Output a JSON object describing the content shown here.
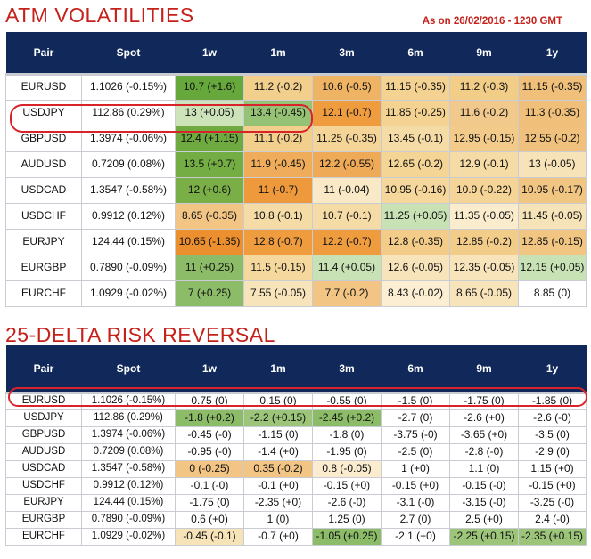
{
  "atm": {
    "title": "ATM VOLATILITIES",
    "as_of": "As on 26/02/2016 - 1230 GMT",
    "headers": [
      "Pair",
      "Spot",
      "1w",
      "1m",
      "3m",
      "6m",
      "9m",
      "1y"
    ],
    "rows": [
      {
        "pair": "EURUSD",
        "spot": "1.1026 (-0.15%)",
        "cells": [
          "10.7 (+1.6)",
          "11.2 (-0.2)",
          "10.6 (-0.5)",
          "11.15 (-0.35)",
          "11.2 (-0.3)",
          "11.15 (-0.35)"
        ],
        "colors": [
          "#67a83c",
          "#f2cf8d",
          "#efb364",
          "#f3d292",
          "#f2cd88",
          "#f0c07a"
        ]
      },
      {
        "pair": "USDJPY",
        "spot": "112.86 (0.29%)",
        "cells": [
          "13 (+0.05)",
          "13.4 (-0.45)",
          "12.1 (-0.7)",
          "11.85 (-0.25)",
          "11.6 (-0.2)",
          "11.3 (-0.35)"
        ],
        "colors": [
          "#cde4bb",
          "#96c276",
          "#ef9c3f",
          "#f3d292",
          "#f2c98c",
          "#f0c07a"
        ]
      },
      {
        "pair": "GBPUSD",
        "spot": "1.3974 (-0.06%)",
        "cells": [
          "12.4 (+1.15)",
          "11.1 (-0.2)",
          "11.25 (-0.35)",
          "13.45 (-0.1)",
          "12.95 (-0.15)",
          "12.55 (-0.2)"
        ],
        "colors": [
          "#6eaa3f",
          "#f2cf8d",
          "#f4d597",
          "#f5dba5",
          "#f2cb8b",
          "#f0c17d"
        ]
      },
      {
        "pair": "AUDUSD",
        "spot": "0.7209 (0.08%)",
        "cells": [
          "13.5 (+0.7)",
          "11.9 (-0.45)",
          "12.2 (-0.55)",
          "12.65 (-0.2)",
          "12.9 (-0.1)",
          "13 (-0.05)"
        ],
        "colors": [
          "#74ad44",
          "#efad5b",
          "#efaa58",
          "#f4d596",
          "#f5dba6",
          "#f7e3b8"
        ]
      },
      {
        "pair": "USDCAD",
        "spot": "1.3547 (-0.58%)",
        "cells": [
          "12 (+0.6)",
          "11 (-0.7)",
          "11 (-0.04)",
          "10.95 (-0.16)",
          "10.9 (-0.22)",
          "10.95 (-0.17)"
        ],
        "colors": [
          "#7aaf47",
          "#ee9a3c",
          "#fae9c6",
          "#f5d79b",
          "#f4d597",
          "#f1c683"
        ]
      },
      {
        "pair": "USDCHF",
        "spot": "0.9912 (0.12%)",
        "cells": [
          "8.65 (-0.35)",
          "10.8 (-0.1)",
          "10.7 (-0.1)",
          "11.25 (+0.05)",
          "11.35 (-0.05)",
          "11.45 (-0.05)"
        ],
        "colors": [
          "#f2c585",
          "#f5dba6",
          "#f5dba6",
          "#c8e2b6",
          "#fbeccd",
          "#f7e3b8"
        ]
      },
      {
        "pair": "EURJPY",
        "spot": "124.44 (0.15%)",
        "cells": [
          "10.65 (-1.35)",
          "12.8 (-0.7)",
          "12.2 (-0.7)",
          "12.8 (-0.35)",
          "12.85 (-0.2)",
          "12.85 (-0.15)"
        ],
        "colors": [
          "#ec8f2f",
          "#ef9c3f",
          "#ef9c3f",
          "#f2cc88",
          "#f2cd8a",
          "#f1c683"
        ]
      },
      {
        "pair": "EURGBP",
        "spot": "0.7890 (-0.09%)",
        "cells": [
          "11 (+0.25)",
          "11.5 (-0.15)",
          "11.4 (+0.05)",
          "12.6 (-0.05)",
          "12.35 (-0.05)",
          "12.15 (+0.05)"
        ],
        "colors": [
          "#8cbc67",
          "#f5d89d",
          "#c8e2b6",
          "#f8e4bb",
          "#f8e4bb",
          "#c8e2b6"
        ]
      },
      {
        "pair": "EURCHF",
        "spot": "1.0929 (-0.02%)",
        "cells": [
          "7 (+0.25)",
          "7.55 (-0.05)",
          "7.7 (-0.2)",
          "8.43 (-0.02)",
          "8.65 (-0.05)",
          "8.85 (0)"
        ],
        "colors": [
          "#8cbc67",
          "#f8e4bb",
          "#f2c585",
          "#fbeed2",
          "#f8e4bb",
          "#ffffff"
        ]
      }
    ]
  },
  "rr": {
    "title": "25-DELTA RISK REVERSAL",
    "headers": [
      "Pair",
      "Spot",
      "1w",
      "1m",
      "3m",
      "6m",
      "9m",
      "1y"
    ],
    "rows": [
      {
        "pair": "EURUSD",
        "spot": "1.1026 (-0.15%)",
        "cells": [
          "0.75 (0)",
          "0.15 (0)",
          "-0.55 (0)",
          "-1.5 (0)",
          "-1.75 (0)",
          "-1.85 (0)"
        ],
        "colors": [
          "#ffffff",
          "#ffffff",
          "#ffffff",
          "#ffffff",
          "#ffffff",
          "#ffffff"
        ]
      },
      {
        "pair": "USDJPY",
        "spot": "112.86 (0.29%)",
        "cells": [
          "-1.8 (+0.2)",
          "-2.2 (+0.15)",
          "-2.45 (+0.2)",
          "-2.7 (0)",
          "-2.6 (+0)",
          "-2.6 (-0)"
        ],
        "colors": [
          "#8cbc67",
          "#9cc57a",
          "#8cbc67",
          "#ffffff",
          "#ffffff",
          "#ffffff"
        ]
      },
      {
        "pair": "GBPUSD",
        "spot": "1.3974 (-0.06%)",
        "cells": [
          "-0.45 (-0)",
          "-1.15 (0)",
          "-1.8 (0)",
          "-3.75 (-0)",
          "-3.65 (+0)",
          "-3.5 (0)"
        ],
        "colors": [
          "#ffffff",
          "#ffffff",
          "#ffffff",
          "#ffffff",
          "#ffffff",
          "#ffffff"
        ]
      },
      {
        "pair": "AUDUSD",
        "spot": "0.7209 (0.08%)",
        "cells": [
          "-0.95 (-0)",
          "-1.4 (+0)",
          "-1.95 (0)",
          "-2.5 (0)",
          "-2.8 (-0)",
          "-2.9 (0)"
        ],
        "colors": [
          "#ffffff",
          "#ffffff",
          "#ffffff",
          "#ffffff",
          "#ffffff",
          "#ffffff"
        ]
      },
      {
        "pair": "USDCAD",
        "spot": "1.3547 (-0.58%)",
        "cells": [
          "0 (-0.25)",
          "0.35 (-0.2)",
          "0.8 (-0.05)",
          "1 (+0)",
          "1.1 (0)",
          "1.15 (+0)"
        ],
        "colors": [
          "#f2c585",
          "#f2c585",
          "#fbecd0",
          "#ffffff",
          "#ffffff",
          "#ffffff"
        ]
      },
      {
        "pair": "USDCHF",
        "spot": "0.9912 (0.12%)",
        "cells": [
          "-0.1 (-0)",
          "-0.1 (+0)",
          "-0.15 (+0)",
          "-0.15 (+0)",
          "-0.15 (-0)",
          "-0.15 (+0)"
        ],
        "colors": [
          "#ffffff",
          "#ffffff",
          "#ffffff",
          "#ffffff",
          "#ffffff",
          "#ffffff"
        ]
      },
      {
        "pair": "EURJPY",
        "spot": "124.44 (0.15%)",
        "cells": [
          "-1.75 (0)",
          "-2.35 (+0)",
          "-2.6 (-0)",
          "-3.1 (-0)",
          "-3.15 (-0)",
          "-3.25 (-0)"
        ],
        "colors": [
          "#ffffff",
          "#ffffff",
          "#ffffff",
          "#ffffff",
          "#ffffff",
          "#ffffff"
        ]
      },
      {
        "pair": "EURGBP",
        "spot": "0.7890 (-0.09%)",
        "cells": [
          "0.6 (+0)",
          "1 (0)",
          "1.25 (0)",
          "2.7 (0)",
          "2.5 (+0)",
          "2.4 (-0)"
        ],
        "colors": [
          "#ffffff",
          "#ffffff",
          "#ffffff",
          "#ffffff",
          "#ffffff",
          "#ffffff"
        ]
      },
      {
        "pair": "EURCHF",
        "spot": "1.0929 (-0.02%)",
        "cells": [
          "-0.45 (-0.1)",
          "-0.7 (+0)",
          "-1.05 (+0.25)",
          "-2.1 (+0)",
          "-2.25 (+0.15)",
          "-2.35 (+0.15)"
        ],
        "colors": [
          "#f7e3b8",
          "#ffffff",
          "#8cbc67",
          "#ffffff",
          "#9cc57a",
          "#9cc57a"
        ]
      }
    ]
  },
  "highlight_color": "#d9232b",
  "title_color": "#c4211b",
  "header_color": "#10295a"
}
